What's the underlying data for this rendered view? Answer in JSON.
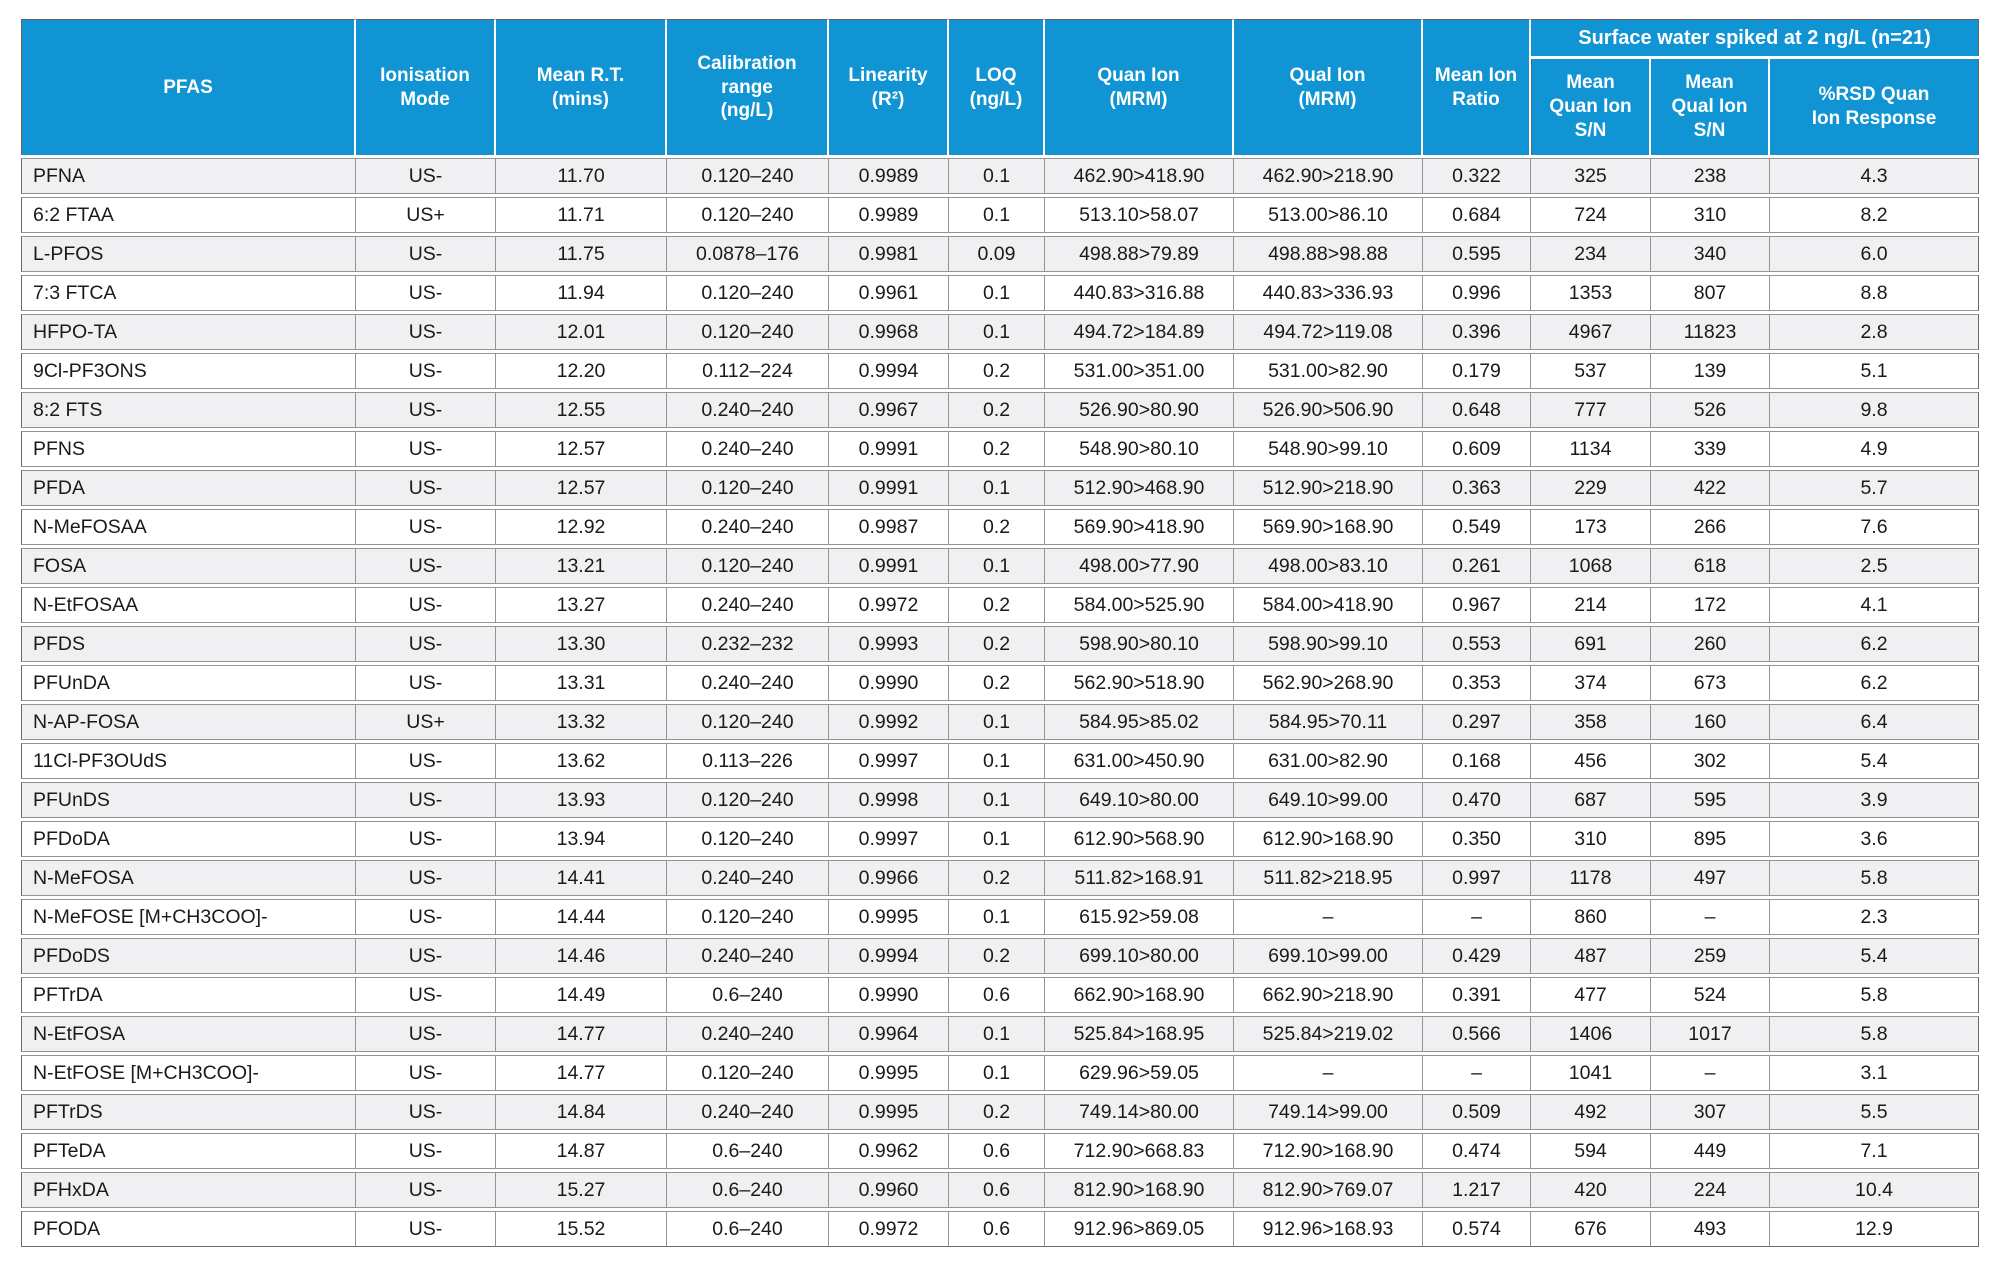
{
  "colors": {
    "header_bg": "#1094d3",
    "header_text": "#ffffff",
    "row_alt_bg": "#f0f0f2",
    "cell_border": "#949494",
    "outer_border": "#6b6b6b",
    "body_text": "#1a1a1a"
  },
  "table": {
    "group_header": "Surface water spiked at 2 ng/L (n=21)",
    "columns": [
      {
        "id": "pfas",
        "label": "PFAS"
      },
      {
        "id": "ionisation-mode",
        "label": "Ionisation\nMode"
      },
      {
        "id": "mean-rt",
        "label": "Mean R.T.\n(mins)"
      },
      {
        "id": "calibration-range",
        "label": "Calibration\nrange\n(ng/L)"
      },
      {
        "id": "linearity",
        "label": "Linearity\n(R²)"
      },
      {
        "id": "loq",
        "label": "LOQ\n(ng/L)"
      },
      {
        "id": "quan-ion",
        "label": "Quan Ion\n(MRM)"
      },
      {
        "id": "qual-ion",
        "label": "Qual Ion\n(MRM)"
      },
      {
        "id": "mean-ion-ratio",
        "label": "Mean Ion\nRatio"
      },
      {
        "id": "mean-quan-ion-sn",
        "label": "Mean\nQuan Ion\nS/N"
      },
      {
        "id": "mean-qual-ion-sn",
        "label": "Mean\nQual Ion\nS/N"
      },
      {
        "id": "rsd-quan-ion-response",
        "label": "%RSD Quan\nIon Response"
      }
    ],
    "rows": [
      [
        "PFNA",
        "US-",
        "11.70",
        "0.120–240",
        "0.9989",
        "0.1",
        "462.90>418.90",
        "462.90>218.90",
        "0.322",
        "325",
        "238",
        "4.3"
      ],
      [
        "6:2 FTAA",
        "US+",
        "11.71",
        "0.120–240",
        "0.9989",
        "0.1",
        "513.10>58.07",
        "513.00>86.10",
        "0.684",
        "724",
        "310",
        "8.2"
      ],
      [
        "L-PFOS",
        "US-",
        "11.75",
        "0.0878–176",
        "0.9981",
        "0.09",
        "498.88>79.89",
        "498.88>98.88",
        "0.595",
        "234",
        "340",
        "6.0"
      ],
      [
        "7:3 FTCA",
        "US-",
        "11.94",
        "0.120–240",
        "0.9961",
        "0.1",
        "440.83>316.88",
        "440.83>336.93",
        "0.996",
        "1353",
        "807",
        "8.8"
      ],
      [
        "HFPO-TA",
        "US-",
        "12.01",
        "0.120–240",
        "0.9968",
        "0.1",
        "494.72>184.89",
        "494.72>119.08",
        "0.396",
        "4967",
        "11823",
        "2.8"
      ],
      [
        "9Cl-PF3ONS",
        "US-",
        "12.20",
        "0.112–224",
        "0.9994",
        "0.2",
        "531.00>351.00",
        "531.00>82.90",
        "0.179",
        "537",
        "139",
        "5.1"
      ],
      [
        "8:2 FTS",
        "US-",
        "12.55",
        "0.240–240",
        "0.9967",
        "0.2",
        "526.90>80.90",
        "526.90>506.90",
        "0.648",
        "777",
        "526",
        "9.8"
      ],
      [
        "PFNS",
        "US-",
        "12.57",
        "0.240–240",
        "0.9991",
        "0.2",
        "548.90>80.10",
        "548.90>99.10",
        "0.609",
        "1134",
        "339",
        "4.9"
      ],
      [
        "PFDA",
        "US-",
        "12.57",
        "0.120–240",
        "0.9991",
        "0.1",
        "512.90>468.90",
        "512.90>218.90",
        "0.363",
        "229",
        "422",
        "5.7"
      ],
      [
        "N-MeFOSAA",
        "US-",
        "12.92",
        "0.240–240",
        "0.9987",
        "0.2",
        "569.90>418.90",
        "569.90>168.90",
        "0.549",
        "173",
        "266",
        "7.6"
      ],
      [
        "FOSA",
        "US-",
        "13.21",
        "0.120–240",
        "0.9991",
        "0.1",
        "498.00>77.90",
        "498.00>83.10",
        "0.261",
        "1068",
        "618",
        "2.5"
      ],
      [
        "N-EtFOSAA",
        "US-",
        "13.27",
        "0.240–240",
        "0.9972",
        "0.2",
        "584.00>525.90",
        "584.00>418.90",
        "0.967",
        "214",
        "172",
        "4.1"
      ],
      [
        "PFDS",
        "US-",
        "13.30",
        "0.232–232",
        "0.9993",
        "0.2",
        "598.90>80.10",
        "598.90>99.10",
        "0.553",
        "691",
        "260",
        "6.2"
      ],
      [
        "PFUnDA",
        "US-",
        "13.31",
        "0.240–240",
        "0.9990",
        "0.2",
        "562.90>518.90",
        "562.90>268.90",
        "0.353",
        "374",
        "673",
        "6.2"
      ],
      [
        "N-AP-FOSA",
        "US+",
        "13.32",
        "0.120–240",
        "0.9992",
        "0.1",
        "584.95>85.02",
        "584.95>70.11",
        "0.297",
        "358",
        "160",
        "6.4"
      ],
      [
        "11Cl-PF3OUdS",
        "US-",
        "13.62",
        "0.113–226",
        "0.9997",
        "0.1",
        "631.00>450.90",
        "631.00>82.90",
        "0.168",
        "456",
        "302",
        "5.4"
      ],
      [
        "PFUnDS",
        "US-",
        "13.93",
        "0.120–240",
        "0.9998",
        "0.1",
        "649.10>80.00",
        "649.10>99.00",
        "0.470",
        "687",
        "595",
        "3.9"
      ],
      [
        "PFDoDA",
        "US-",
        "13.94",
        "0.120–240",
        "0.9997",
        "0.1",
        "612.90>568.90",
        "612.90>168.90",
        "0.350",
        "310",
        "895",
        "3.6"
      ],
      [
        "N-MeFOSA",
        "US-",
        "14.41",
        "0.240–240",
        "0.9966",
        "0.2",
        "511.82>168.91",
        "511.82>218.95",
        "0.997",
        "1178",
        "497",
        "5.8"
      ],
      [
        "N-MeFOSE [M+CH3COO]-",
        "US-",
        "14.44",
        "0.120–240",
        "0.9995",
        "0.1",
        "615.92>59.08",
        "–",
        "–",
        "860",
        "–",
        "2.3"
      ],
      [
        "PFDoDS",
        "US-",
        "14.46",
        "0.240–240",
        "0.9994",
        "0.2",
        "699.10>80.00",
        "699.10>99.00",
        "0.429",
        "487",
        "259",
        "5.4"
      ],
      [
        "PFTrDA",
        "US-",
        "14.49",
        "0.6–240",
        "0.9990",
        "0.6",
        "662.90>168.90",
        "662.90>218.90",
        "0.391",
        "477",
        "524",
        "5.8"
      ],
      [
        "N-EtFOSA",
        "US-",
        "14.77",
        "0.240–240",
        "0.9964",
        "0.1",
        "525.84>168.95",
        "525.84>219.02",
        "0.566",
        "1406",
        "1017",
        "5.8"
      ],
      [
        "N-EtFOSE [M+CH3COO]-",
        "US-",
        "14.77",
        "0.120–240",
        "0.9995",
        "0.1",
        "629.96>59.05",
        "–",
        "–",
        "1041",
        "–",
        "3.1"
      ],
      [
        "PFTrDS",
        "US-",
        "14.84",
        "0.240–240",
        "0.9995",
        "0.2",
        "749.14>80.00",
        "749.14>99.00",
        "0.509",
        "492",
        "307",
        "5.5"
      ],
      [
        "PFTeDA",
        "US-",
        "14.87",
        "0.6–240",
        "0.9962",
        "0.6",
        "712.90>668.83",
        "712.90>168.90",
        "0.474",
        "594",
        "449",
        "7.1"
      ],
      [
        "PFHxDA",
        "US-",
        "15.27",
        "0.6–240",
        "0.9960",
        "0.6",
        "812.90>168.90",
        "812.90>769.07",
        "1.217",
        "420",
        "224",
        "10.4"
      ],
      [
        "PFODA",
        "US-",
        "15.52",
        "0.6–240",
        "0.9972",
        "0.6",
        "912.96>869.05",
        "912.96>168.93",
        "0.574",
        "676",
        "493",
        "12.9"
      ]
    ]
  }
}
